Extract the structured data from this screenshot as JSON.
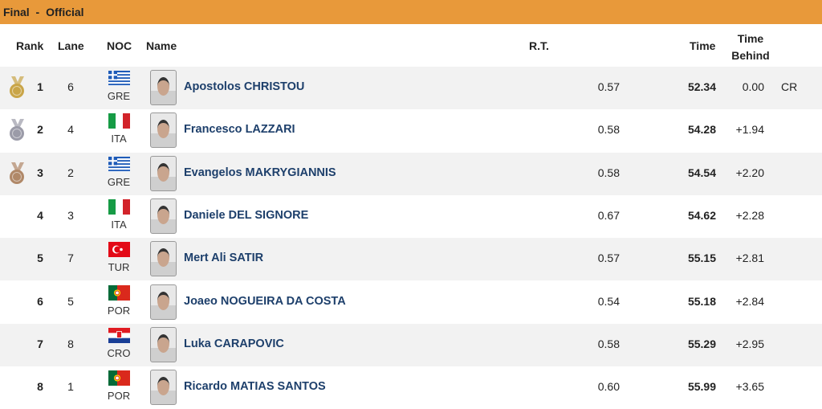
{
  "header": {
    "title": "Final - Official"
  },
  "columns": {
    "rank": "Rank",
    "lane": "Lane",
    "noc": "NOC",
    "name": "Name",
    "rt": "R.T.",
    "time": "Time",
    "behind": "Time Behind"
  },
  "rows": [
    {
      "rank": 1,
      "lane": 6,
      "noc": "GRE",
      "name": "Apostolos CHRISTOU",
      "rt": "0.57",
      "time": "52.34",
      "behind": "0.00",
      "record": "CR"
    },
    {
      "rank": 2,
      "lane": 4,
      "noc": "ITA",
      "name": "Francesco LAZZARI",
      "rt": "0.58",
      "time": "54.28",
      "behind": "+1.94"
    },
    {
      "rank": 3,
      "lane": 2,
      "noc": "GRE",
      "name": "Evangelos MAKRYGIANNIS",
      "rt": "0.58",
      "time": "54.54",
      "behind": "+2.20"
    },
    {
      "rank": 4,
      "lane": 3,
      "noc": "ITA",
      "name": "Daniele DEL SIGNORE",
      "rt": "0.67",
      "time": "54.62",
      "behind": "+2.28"
    },
    {
      "rank": 5,
      "lane": 7,
      "noc": "TUR",
      "name": "Mert Ali SATIR",
      "rt": "0.57",
      "time": "55.15",
      "behind": "+2.81"
    },
    {
      "rank": 6,
      "lane": 5,
      "noc": "POR",
      "name": "Joaeo NOGUEIRA DA COSTA",
      "rt": "0.54",
      "time": "55.18",
      "behind": "+2.84"
    },
    {
      "rank": 7,
      "lane": 8,
      "noc": "CRO",
      "name": "Luka CARAPOVIC",
      "rt": "0.58",
      "time": "55.29",
      "behind": "+2.95"
    },
    {
      "rank": 8,
      "lane": 1,
      "noc": "POR",
      "name": "Ricardo MATIAS SANTOS",
      "rt": "0.60",
      "time": "55.99",
      "behind": "+3.65"
    }
  ]
}
